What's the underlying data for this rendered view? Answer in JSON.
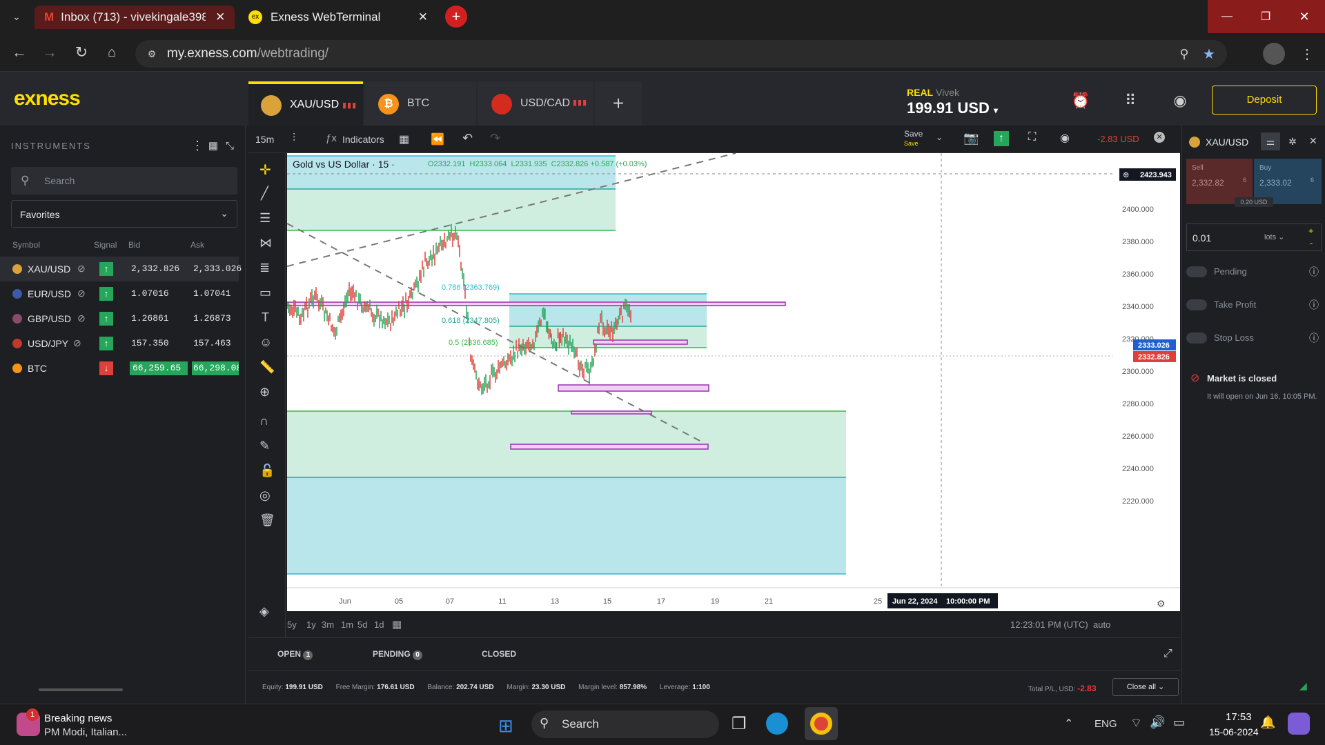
{
  "browser": {
    "tabs": [
      {
        "label": "Inbox (713) - vivekingale3989@"
      },
      {
        "label": "Exness WebTerminal"
      }
    ],
    "url_host": "my.exness.com",
    "url_path": "/webtrading/"
  },
  "app": {
    "logo": "exness",
    "instrument_tabs": [
      {
        "label": "XAU/USD"
      },
      {
        "label": "BTC"
      },
      {
        "label": "USD/CAD"
      }
    ],
    "account_type": "REAL",
    "account_name": "Vivek",
    "balance": "199.91 USD",
    "deposit_label": "Deposit"
  },
  "instruments": {
    "title": "INSTRUMENTS",
    "search_placeholder": "Search",
    "favorites": "Favorites",
    "columns": [
      "Symbol",
      "Signal",
      "Bid",
      "Ask"
    ],
    "rows": [
      {
        "symbol": "XAU/USD",
        "bid": "2,332.826",
        "ask": "2,333.026",
        "signal": "up"
      },
      {
        "symbol": "EUR/USD",
        "bid": "1.07016",
        "ask": "1.07041",
        "signal": "up"
      },
      {
        "symbol": "GBP/USD",
        "bid": "1.26861",
        "ask": "1.26873",
        "signal": "up"
      },
      {
        "symbol": "USD/JPY",
        "bid": "157.350",
        "ask": "157.463",
        "signal": "up"
      },
      {
        "symbol": "BTC",
        "bid": "66,259.65",
        "ask": "66,298.08",
        "signal": "down"
      }
    ]
  },
  "toolbar": {
    "interval": "15m",
    "indicators": "Indicators",
    "save": "Save",
    "save_sub": "Save",
    "pl": "-2.83 USD"
  },
  "chart": {
    "title": "Gold vs US Dollar · 15 ·",
    "ohlc": "O2332.191  H2333.064  L2331.935  C2332.826 +0.587 (+0.03%)",
    "price_ticks": [
      "2420.000",
      "2400.000",
      "2380.000",
      "2360.000",
      "2340.000",
      "2320.000",
      "2300.000",
      "2280.000",
      "2260.000",
      "2240.000",
      "2220.000"
    ],
    "date_ticks": [
      "Jun",
      "05",
      "07",
      "11",
      "13",
      "15",
      "17",
      "19",
      "21",
      "25"
    ],
    "crosshair_price": "2423.943",
    "crosshair_date": "Jun 22, 2024",
    "crosshair_time": "10:00:00 PM",
    "ask_label": "2333.026",
    "bid_label": "2332.826",
    "fib_labels": [
      "0.786 (2363.769)",
      "0.618 (2347.805)",
      "0.5 (2336.685)"
    ],
    "ranges": [
      "5y",
      "1y",
      "3m",
      "1m",
      "5d",
      "1d"
    ],
    "clock": "12:23:01 PM (UTC)",
    "auto": "auto"
  },
  "orders": {
    "tabs": [
      {
        "label": "OPEN",
        "count": "1"
      },
      {
        "label": "PENDING",
        "count": "0"
      },
      {
        "label": "CLOSED",
        "count": ""
      }
    ]
  },
  "status": {
    "equity_label": "Equity:",
    "equity": "199.91 USD",
    "free_label": "Free Margin:",
    "free": "176.61 USD",
    "balance_label": "Balance:",
    "balance": "202.74 USD",
    "margin_label": "Margin:",
    "margin": "23.30 USD",
    "level_label": "Margin level:",
    "level": "857.98%",
    "leverage_label": "Leverage:",
    "leverage": "1:100",
    "total_label": "Total P/L, USD:",
    "total": "-2.83",
    "close_all": "Close all"
  },
  "order_panel": {
    "symbol": "XAU/USD",
    "sell_label": "Sell",
    "sell_price": "2,332.82",
    "sell_sup": "6",
    "buy_label": "Buy",
    "buy_price": "2,333.02",
    "buy_sup": "6",
    "spread": "0.20 USD",
    "volume": "0.01",
    "unit": "lots",
    "pending": "Pending",
    "take_profit": "Take Profit",
    "stop_loss": "Stop Loss",
    "closed_title": "Market is closed",
    "closed_text": "It will open on Jun 16, 10:05 PM."
  },
  "taskbar": {
    "news_title": "Breaking news",
    "news_sub": "PM Modi, Italian...",
    "news_badge": "1",
    "search": "Search",
    "lang": "ENG",
    "time": "17:53",
    "date": "15-06-2024"
  },
  "colors": {
    "accent": "#ffde02",
    "up": "#26a65b",
    "down": "#e0403a",
    "zone": "#b9e6ea"
  }
}
